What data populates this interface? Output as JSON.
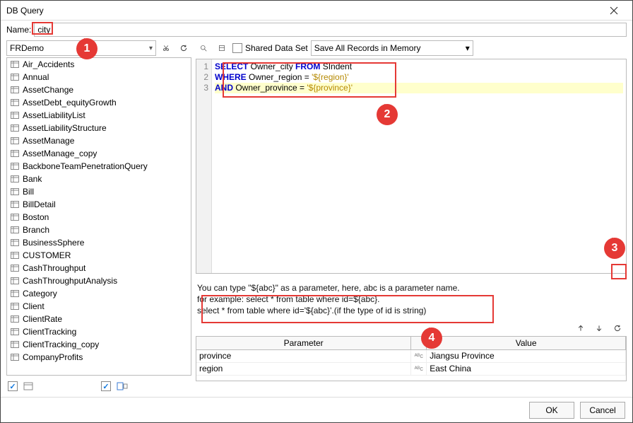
{
  "window": {
    "title": "DB Query"
  },
  "name_row": {
    "label": "Name:",
    "value": "city"
  },
  "left": {
    "datasource": "FRDemo",
    "tables": [
      "Air_Accidents",
      "Annual",
      "AssetChange",
      "AssetDebt_equityGrowth",
      "AssetLiabilityList",
      "AssetLiabilityStructure",
      "AssetManage",
      "AssetManage_copy",
      "BackboneTeamPenetrationQuery",
      "Bank",
      "Bill",
      "BillDetail",
      "Boston",
      "Branch",
      "BusinessSphere",
      "CUSTOMER",
      "CashThroughput",
      "CashThroughputAnalysis",
      "Category",
      "Client",
      "ClientRate",
      "ClientTracking",
      "ClientTracking_copy",
      "CompanyProfits"
    ]
  },
  "right_toolbar": {
    "shared_label": "Shared Data Set",
    "save_mode": "Save All Records in Memory"
  },
  "sql": {
    "lines": [
      {
        "kw1": "SELECT",
        "mid1": " Owner_city ",
        "kw2": "FROM",
        "mid2": " SIndent"
      },
      {
        "kw1": "WHERE",
        "mid1": " Owner_region = ",
        "str": "'${region}'"
      },
      {
        "kw1": "AND",
        "mid1": " Owner_province = ",
        "str": "'${province}'"
      }
    ]
  },
  "help": {
    "line1": "You can type \"${abc}\" as a parameter, here, abc is a parameter name.",
    "line2": "for example: select * from table where id=${abc}.",
    "line3": "select * from table where id='${abc}'.(if the type of id is string)"
  },
  "param_table": {
    "headers": {
      "param": "Parameter",
      "value": "Value"
    },
    "rows": [
      {
        "param": "province",
        "value": "Jiangsu Province"
      },
      {
        "param": "region",
        "value": "East China"
      }
    ]
  },
  "buttons": {
    "ok": "OK",
    "cancel": "Cancel"
  },
  "callouts": {
    "c1": "1",
    "c2": "2",
    "c3": "3",
    "c4": "4"
  },
  "colors": {
    "keyword": "#0000cc",
    "string": "#b58900",
    "callout": "#e53935",
    "highlight_line": "#ffffcc"
  }
}
